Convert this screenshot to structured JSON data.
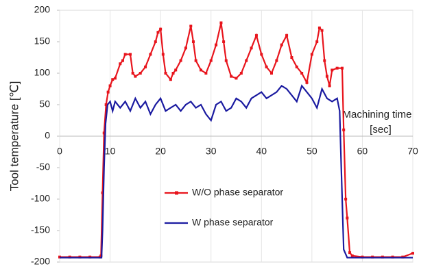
{
  "chart_data": {
    "type": "line",
    "ylabel": "Tool temperature [℃]",
    "xlabel": [
      "Machining time",
      "[sec]"
    ],
    "xlim": [
      0,
      70
    ],
    "xticks": [
      0,
      10,
      20,
      30,
      40,
      50,
      60,
      70
    ],
    "ylim": [
      -200,
      200
    ],
    "yticks": [
      -200,
      -150,
      -100,
      -50,
      0,
      50,
      100,
      150,
      200
    ],
    "grid": true,
    "series": [
      {
        "name": "W/O phase separator",
        "color": "#e8141c",
        "marker": "square",
        "x": [
          0,
          2,
          4,
          6,
          8,
          8.2,
          8.5,
          8.8,
          9.2,
          9.6,
          10,
          10.5,
          11,
          12,
          12.5,
          13,
          14,
          14.5,
          15,
          16,
          17,
          18,
          19,
          19.5,
          20,
          20.5,
          21,
          22,
          22.5,
          23,
          24,
          25,
          26,
          26.5,
          27,
          28,
          29,
          30,
          31,
          32,
          32.5,
          33,
          34,
          35,
          36,
          37,
          38,
          39,
          40,
          41,
          42,
          43,
          44,
          45,
          46,
          47,
          48,
          49,
          50,
          51,
          51.5,
          52,
          52.5,
          53,
          53.5,
          54,
          55,
          56,
          56.3,
          56.7,
          57,
          57.5,
          58,
          60,
          62,
          64,
          66,
          68,
          70
        ],
        "values": [
          -192,
          -192,
          -192,
          -192,
          -192,
          -190,
          -90,
          5,
          50,
          70,
          80,
          90,
          92,
          115,
          120,
          130,
          130,
          100,
          95,
          100,
          110,
          130,
          150,
          165,
          170,
          130,
          100,
          90,
          100,
          105,
          120,
          140,
          175,
          150,
          120,
          105,
          100,
          120,
          145,
          180,
          150,
          120,
          95,
          92,
          100,
          120,
          140,
          160,
          130,
          110,
          100,
          120,
          145,
          160,
          125,
          110,
          100,
          85,
          130,
          150,
          172,
          168,
          120,
          95,
          80,
          105,
          108,
          108,
          10,
          -100,
          -130,
          -185,
          -190,
          -192,
          -192,
          -192,
          -192,
          -192,
          -186
        ]
      },
      {
        "name": "W phase separator",
        "color": "#1a1aa0",
        "marker": "none",
        "x": [
          0,
          4,
          8.3,
          8.5,
          8.8,
          9.1,
          9.5,
          10,
          10.5,
          11,
          12,
          13,
          14,
          15,
          16,
          17,
          18,
          19,
          20,
          21,
          22,
          23,
          24,
          25,
          26,
          27,
          28,
          29,
          30,
          31,
          32,
          33,
          34,
          35,
          36,
          37,
          38,
          39,
          40,
          41,
          42,
          43,
          44,
          45,
          46,
          47,
          48,
          49,
          50,
          51,
          52,
          53,
          54,
          55,
          55.5,
          56,
          56.3,
          57,
          60,
          65,
          70
        ],
        "values": [
          -193,
          -193,
          -193,
          -150,
          -50,
          20,
          50,
          55,
          40,
          55,
          45,
          55,
          40,
          60,
          45,
          55,
          35,
          50,
          60,
          40,
          45,
          50,
          40,
          50,
          55,
          45,
          50,
          35,
          25,
          50,
          55,
          40,
          45,
          60,
          55,
          45,
          60,
          65,
          70,
          60,
          65,
          70,
          80,
          75,
          65,
          55,
          80,
          70,
          60,
          45,
          75,
          60,
          55,
          60,
          40,
          -100,
          -180,
          -193,
          -193,
          -193,
          -193
        ]
      }
    ]
  }
}
